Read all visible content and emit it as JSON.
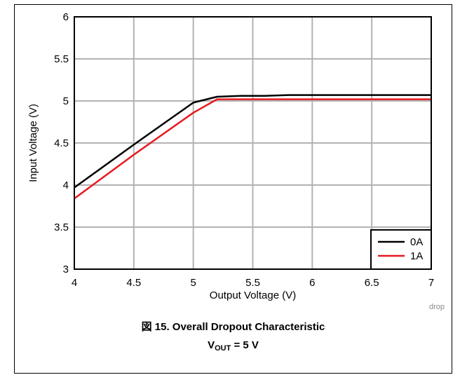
{
  "chart_data": {
    "type": "line",
    "xlabel": "Output Voltage (V)",
    "ylabel": "Input Voltage (V)",
    "xlim": [
      4,
      7
    ],
    "ylim": [
      3,
      6
    ],
    "xticks": [
      "4",
      "4.5",
      "5",
      "5.5",
      "6",
      "6.5",
      "7"
    ],
    "yticks": [
      "3",
      "3.5",
      "4",
      "4.5",
      "5",
      "5.5",
      "6"
    ],
    "grid": true,
    "legend_position": "bottom-right",
    "series": [
      {
        "name": "0A",
        "color": "#000000",
        "x": [
          4.0,
          4.5,
          5.0,
          5.2,
          5.4,
          5.6,
          5.8,
          6.0,
          6.5,
          7.0
        ],
        "y": [
          3.97,
          4.48,
          4.98,
          5.05,
          5.06,
          5.06,
          5.07,
          5.07,
          5.07,
          5.07
        ]
      },
      {
        "name": "1A",
        "color": "#e8191f",
        "x": [
          4.0,
          4.5,
          5.0,
          5.2,
          5.5,
          6.0,
          6.5,
          7.0
        ],
        "y": [
          3.84,
          4.36,
          4.86,
          5.02,
          5.02,
          5.02,
          5.02,
          5.02
        ]
      }
    ]
  },
  "figure": {
    "caption": "図 15. Overall Dropout Characteristic",
    "condition_main": "V",
    "condition_sub": "OUT",
    "condition_rest": " = 5 V",
    "tag": "drop"
  }
}
